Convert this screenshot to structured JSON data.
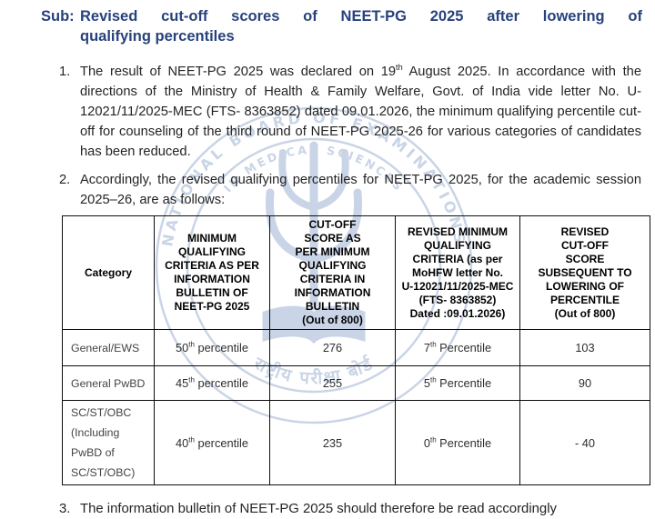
{
  "title": {
    "prefix": "Sub:",
    "line1": "Revised cut-off scores of NEET-PG 2025 after lowering of",
    "line2": "qualifying percentiles"
  },
  "paragraphs": [
    {
      "number": "1.",
      "text": "The result of NEET-PG 2025 was declared on 19^th^ August 2025. In accordance with the directions of the Ministry of Health & Family Welfare, Govt. of India vide letter No. U-12021/11/2025-MEC (FTS- 8363852) dated 09.01.2026, the minimum qualifying percentile cut-off for counseling of the third round of NEET-PG 2025-26 for various categories of candidates has been reduced."
    },
    {
      "number": "2.",
      "text": "Accordingly, the revised qualifying percentiles for NEET-PG 2025, for the academic session 2025–26, are as follows:"
    },
    {
      "number": "3.",
      "text": "The information bulletin of NEET-PG 2025 should therefore be read accordingly"
    }
  ],
  "table": {
    "headers": [
      "Category",
      "MINIMUM\nQUALIFYING\nCRITERIA AS PER\nINFORMATION\nBULLETIN OF\nNEET-PG 2025",
      "CUT-OFF\nSCORE AS\nPER MINIMUM\nQUALIFYING\nCRITERIA IN\nINFORMATION\nBULLETIN\n(Out of 800)",
      "REVISED MINIMUM\nQUALIFYING\nCRITERIA (as per\nMoHFW letter No.\nU-12021/11/2025-MEC\n(FTS- 8363852)\nDated :09.01.2026)",
      "REVISED\nCUT-OFF\nSCORE\nSUBSEQUENT TO\nLOWERING OF\nPERCENTILE\n(Out of 800)"
    ],
    "rows": [
      [
        "General/EWS",
        "50^th^ percentile",
        "276",
        "7^th^ Percentile",
        "103"
      ],
      [
        "General PwBD",
        "45^th^ percentile",
        "255",
        "5^th^ Percentile",
        "90"
      ],
      [
        "SC/ST/OBC\n(Including\nPwBD of\nSC/ST/OBC)",
        "40^th^ percentile",
        "235",
        "0^th^ Percentile",
        "- 40"
      ]
    ]
  },
  "watermark": {
    "seal_name": "National Board of Examinations in Medical Sciences seal",
    "ring_text_outer": "NATIONAL BOARD OF EXAMINATIONS",
    "ring_text_inner": "IN MEDICAL SCIENCES",
    "ring_text_bottom": "राष्ट्रीय परीक्षा बोर्ड"
  },
  "colors": {
    "title_navy": "#27427c",
    "body_text": "#242424",
    "table_border": "#0d0d0d",
    "watermark_blue": "#8fa6cc"
  }
}
